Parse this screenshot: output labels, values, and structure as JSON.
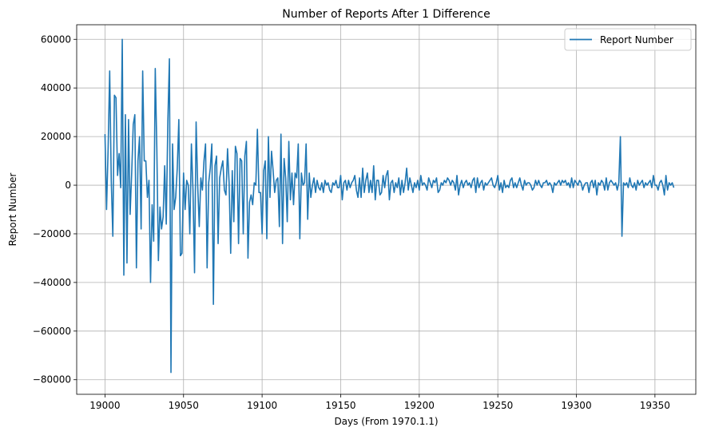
{
  "chart_data": {
    "type": "line",
    "title": "Number of Reports After 1 Difference",
    "xlabel": "Days (From 1970.1.1)",
    "ylabel": "Report Number",
    "xlim": [
      18982,
      19376
    ],
    "ylim": [
      -86000,
      66000
    ],
    "xticks": [
      19000,
      19050,
      19100,
      19150,
      19200,
      19250,
      19300,
      19350
    ],
    "yticks": [
      -80000,
      -60000,
      -40000,
      -20000,
      0,
      20000,
      40000,
      60000
    ],
    "xtick_labels": [
      "19000",
      "19050",
      "19100",
      "19150",
      "19200",
      "19250",
      "19300",
      "19350"
    ],
    "ytick_labels": [
      "−80000",
      "−60000",
      "−40000",
      "−20000",
      "0",
      "20000",
      "40000",
      "60000"
    ],
    "grid": true,
    "legend_position": "top-right",
    "line_color": "#1f77b4",
    "series": [
      {
        "name": "Report Number",
        "x_start": 19000,
        "x_step": 1,
        "values": [
          21000,
          -10000,
          15000,
          47000,
          2000,
          -21000,
          37000,
          36000,
          4000,
          13000,
          -1000,
          60000,
          -37000,
          29000,
          -32000,
          27000,
          -12000,
          5000,
          25000,
          29000,
          -34000,
          10000,
          20000,
          -18000,
          47000,
          10000,
          10000,
          -5000,
          2000,
          -40000,
          -8000,
          -23000,
          48000,
          15000,
          -31000,
          -9000,
          -18000,
          -13000,
          8000,
          -16000,
          26000,
          52000,
          -77000,
          17000,
          -10000,
          -5000,
          7000,
          27000,
          -29000,
          -28000,
          5000,
          -10000,
          2000,
          0,
          -20000,
          17000,
          -2000,
          -36000,
          26000,
          0,
          -17000,
          3000,
          -2000,
          10000,
          17000,
          -34000,
          1000,
          7000,
          17000,
          -49000,
          8000,
          12000,
          -24000,
          3000,
          7000,
          10000,
          -2000,
          -4000,
          15000,
          1000,
          -28000,
          6000,
          -15000,
          16000,
          13000,
          -24000,
          11000,
          10000,
          -20000,
          12000,
          18000,
          -30000,
          -7000,
          -4000,
          -8000,
          1000,
          0,
          23000,
          -3000,
          -3000,
          -20000,
          6000,
          10000,
          -22000,
          20000,
          -5000,
          14000,
          6000,
          -3000,
          2000,
          3000,
          -17000,
          21000,
          -24000,
          11000,
          3000,
          -15000,
          18000,
          -6000,
          5000,
          -8000,
          5000,
          3000,
          17000,
          -22000,
          5000,
          0,
          1000,
          17000,
          -14000,
          5000,
          -5000,
          0,
          3000,
          -3000,
          2000,
          -1000,
          -2000,
          1000,
          -3000,
          2000,
          0,
          1000,
          -2000,
          -3000,
          1000,
          0,
          2000,
          -1000,
          -1000,
          4000,
          -6000,
          1000,
          2000,
          -2000,
          2000,
          -1000,
          1000,
          2000,
          4000,
          -2000,
          -5000,
          3000,
          -5000,
          7000,
          -3000,
          2000,
          5000,
          -3000,
          2000,
          -3000,
          8000,
          -6000,
          2000,
          2000,
          -4000,
          -3000,
          4000,
          -1000,
          4000,
          6000,
          -6000,
          1000,
          2000,
          -3000,
          1000,
          -1000,
          3000,
          -4000,
          2000,
          -3000,
          1000,
          7000,
          -2000,
          3000,
          0,
          -3000,
          1000,
          -1000,
          2000,
          -2000,
          4000,
          0,
          1000,
          0,
          -2000,
          3000,
          1000,
          -1000,
          2000,
          1000,
          3000,
          -3000,
          -2000,
          1000,
          0,
          2000,
          1000,
          3000,
          2000,
          0,
          2000,
          1000,
          -2000,
          4000,
          -4000,
          0,
          2000,
          -1000,
          1000,
          2000,
          0,
          1000,
          -1000,
          2000,
          3000,
          -3000,
          3000,
          -1000,
          1000,
          2000,
          -2000,
          1000,
          0,
          1000,
          2000,
          3000,
          0,
          -1000,
          1000,
          4000,
          -2000,
          1000,
          -3000,
          2000,
          -1000,
          0,
          -1000,
          2000,
          3000,
          -1000,
          1000,
          -1000,
          1000,
          3000,
          0,
          -2000,
          2000,
          0,
          1000,
          1000,
          0,
          -2000,
          -1000,
          2000,
          0,
          2000,
          0,
          -1000,
          1000,
          1000,
          2000,
          0,
          1000,
          0,
          -3000,
          1000,
          0,
          1000,
          2000,
          0,
          2000,
          1000,
          2000,
          0,
          1000,
          -1000,
          3000,
          -1000,
          2000,
          1000,
          0,
          2000,
          1000,
          -2000,
          0,
          1000,
          1000,
          -3000,
          1000,
          2000,
          -1000,
          2000,
          -4000,
          1000,
          0,
          2000,
          1000,
          -2000,
          3000,
          -2000,
          1000,
          2000,
          1000,
          0,
          1000,
          -2000,
          1000,
          20000,
          -21000,
          1000,
          0,
          1000,
          -1000,
          3000,
          0,
          -1000,
          1000,
          -2000,
          2000,
          0,
          1000,
          2000,
          -1000,
          1000,
          0,
          1000,
          2000,
          -1000,
          4000,
          0,
          0,
          -2000,
          1000,
          2000,
          0,
          -4000,
          4000,
          -2000,
          1000,
          0,
          1000,
          -1000
        ]
      }
    ]
  }
}
